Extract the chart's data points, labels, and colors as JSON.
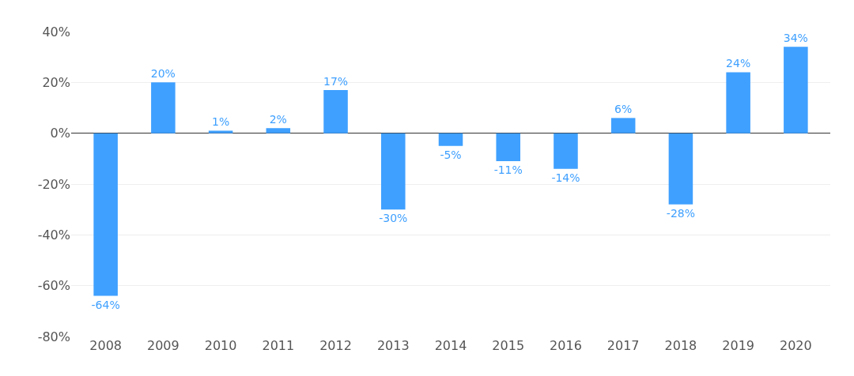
{
  "chart_data": {
    "type": "bar",
    "categories": [
      "2008",
      "2009",
      "2010",
      "2011",
      "2012",
      "2013",
      "2014",
      "2015",
      "2016",
      "2017",
      "2018",
      "2019",
      "2020"
    ],
    "values": [
      -64,
      20,
      1,
      2,
      17,
      -30,
      -5,
      -11,
      -14,
      6,
      -28,
      24,
      34
    ],
    "value_labels": [
      "-64%",
      "20%",
      "1%",
      "2%",
      "17%",
      "-30%",
      "-5%",
      "-11%",
      "-14%",
      "6%",
      "-28%",
      "24%",
      "34%"
    ],
    "color": "#3fa0ff",
    "ylim": [
      -80,
      40
    ],
    "yticks": [
      {
        "value": -80,
        "label": "-80%"
      },
      {
        "value": -60,
        "label": "-60%"
      },
      {
        "value": -40,
        "label": "-40%"
      },
      {
        "value": -20,
        "label": "-20%"
      },
      {
        "value": 0,
        "label": "0%"
      },
      {
        "value": 20,
        "label": "20%"
      },
      {
        "value": 40,
        "label": "40%"
      }
    ],
    "grid": "y",
    "legend": false
  }
}
